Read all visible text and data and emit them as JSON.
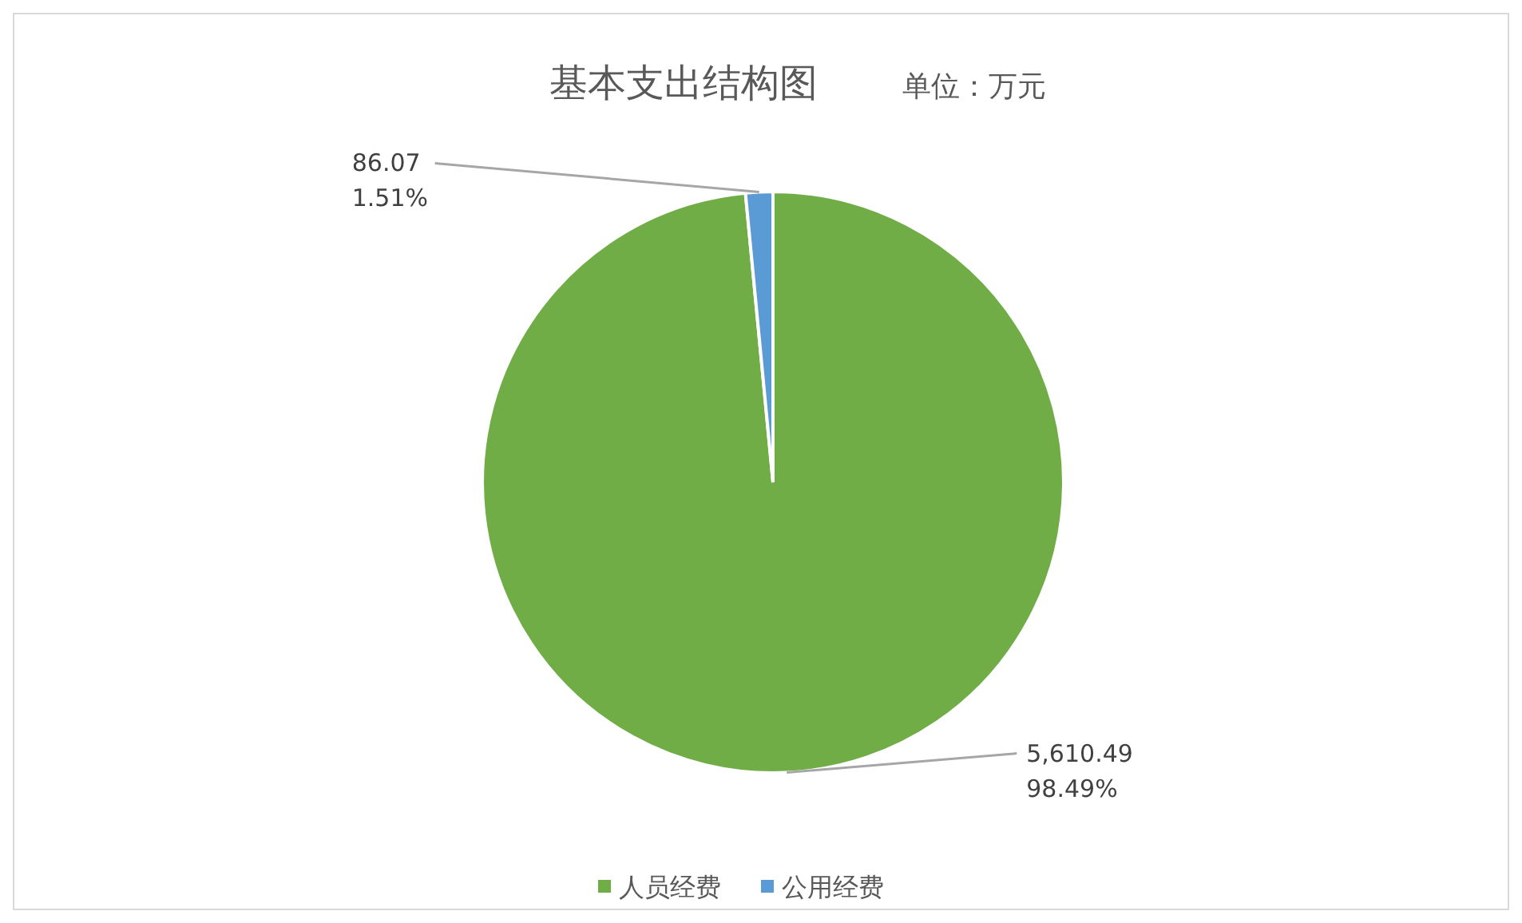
{
  "chart_data": {
    "type": "pie",
    "title": "基本支出结构图",
    "subtitle": "单位：万元",
    "categories": [
      "人员经费",
      "公用经费"
    ],
    "values": [
      5610.49,
      86.07
    ],
    "colors": [
      "#70ad47",
      "#5b9bd5"
    ],
    "value_labels": [
      "5,610.49\n98.49%",
      "86.07\n1.51%"
    ],
    "legend": "bottom"
  }
}
